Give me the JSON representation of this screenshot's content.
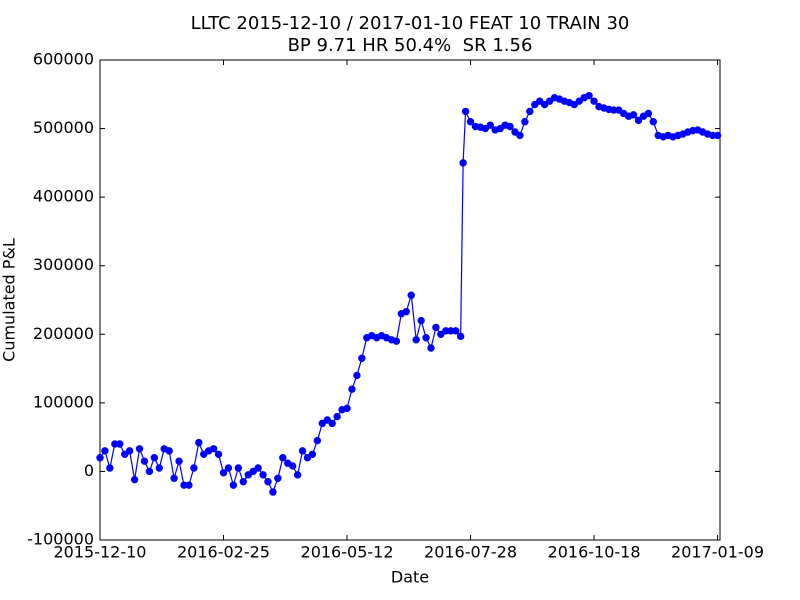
{
  "chart_data": {
    "type": "line",
    "title": "LLTC 2015-12-10 / 2017-01-10 FEAT 10 TRAIN 30",
    "subtitle": "BP 9.71 HR 50.4%  SR 1.56",
    "x_label": "Date",
    "y_label": "Cumulated P&L",
    "x": [
      0,
      2,
      4,
      6,
      8,
      10,
      12,
      14,
      16,
      18,
      20,
      22,
      24,
      26,
      28,
      30,
      32,
      34,
      36,
      38,
      40,
      42,
      44,
      46,
      48,
      50,
      52,
      54,
      56,
      58,
      60,
      62,
      64,
      66,
      68,
      70,
      72,
      74,
      76,
      78,
      80,
      82,
      84,
      86,
      88,
      90,
      92,
      94,
      96,
      98,
      100,
      102,
      104,
      106,
      108,
      110,
      112,
      114,
      116,
      118,
      120,
      122,
      124,
      126,
      128,
      130,
      132,
      134,
      136,
      138,
      140,
      142,
      144,
      146,
      147,
      148,
      150,
      152,
      154,
      156,
      158,
      160,
      162,
      164,
      166,
      168,
      170,
      172,
      174,
      176,
      178,
      180,
      182,
      184,
      186,
      188,
      190,
      192,
      194,
      196,
      198,
      200,
      202,
      204,
      206,
      208,
      210,
      212,
      214,
      216,
      218,
      220,
      222,
      224,
      226,
      228,
      230,
      232,
      234,
      236,
      238,
      240,
      242,
      244,
      246,
      248,
      250
    ],
    "series": [
      {
        "color": "#0000ff",
        "values": [
          20000,
          30000,
          5000,
          40000,
          40000,
          25000,
          30000,
          -12000,
          33000,
          15000,
          0,
          20000,
          5000,
          33000,
          30000,
          -10000,
          15000,
          -20000,
          -20000,
          5000,
          42000,
          25000,
          30000,
          33000,
          25000,
          -2000,
          5000,
          -20000,
          5000,
          -15000,
          -5000,
          0,
          5000,
          -5000,
          -15000,
          -30000,
          -10000,
          20000,
          12000,
          8000,
          -5000,
          30000,
          20000,
          25000,
          45000,
          70000,
          75000,
          70000,
          80000,
          90000,
          92000,
          120000,
          140000,
          165000,
          195000,
          198000,
          195000,
          198000,
          195000,
          192000,
          190000,
          230000,
          233000,
          257000,
          192000,
          220000,
          195000,
          180000,
          210000,
          200000,
          205000,
          205000,
          205000,
          197000,
          450000,
          525000,
          510000,
          503000,
          502000,
          500000,
          505000,
          498000,
          500000,
          505000,
          503000,
          495000,
          490000,
          510000,
          525000,
          535000,
          540000,
          535000,
          540000,
          545000,
          543000,
          540000,
          538000,
          535000,
          540000,
          545000,
          548000,
          540000,
          532000,
          530000,
          528000,
          527000,
          527000,
          522000,
          518000,
          520000,
          512000,
          518000,
          522000,
          510000,
          490000,
          488000,
          490000,
          488000,
          490000,
          492000,
          495000,
          497000,
          498000,
          495000,
          492000,
          490000,
          490000
        ]
      }
    ],
    "xlim": [
      0,
      251
    ],
    "xticks": [
      {
        "value": 0,
        "label": "2015-12-10"
      },
      {
        "value": 50,
        "label": "2016-02-25"
      },
      {
        "value": 100,
        "label": "2016-05-12"
      },
      {
        "value": 150,
        "label": "2016-07-28"
      },
      {
        "value": 200,
        "label": "2016-10-18"
      },
      {
        "value": 250,
        "label": "2017-01-09"
      }
    ],
    "ylim": [
      -100000,
      600000
    ],
    "yticks": [
      -100000,
      0,
      100000,
      200000,
      300000,
      400000,
      500000,
      600000
    ],
    "grid": false,
    "markers": true
  }
}
